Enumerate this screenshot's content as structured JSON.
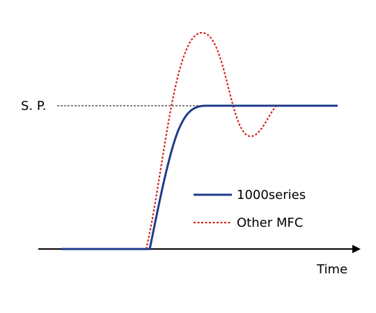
{
  "setpoint_label": "S. P.",
  "x_axis_label": "Time",
  "legend": {
    "items": [
      {
        "label": "1000series",
        "color": "#1f3a8a"
      },
      {
        "label": "Other MFC",
        "color": "#d42020"
      }
    ]
  }
}
